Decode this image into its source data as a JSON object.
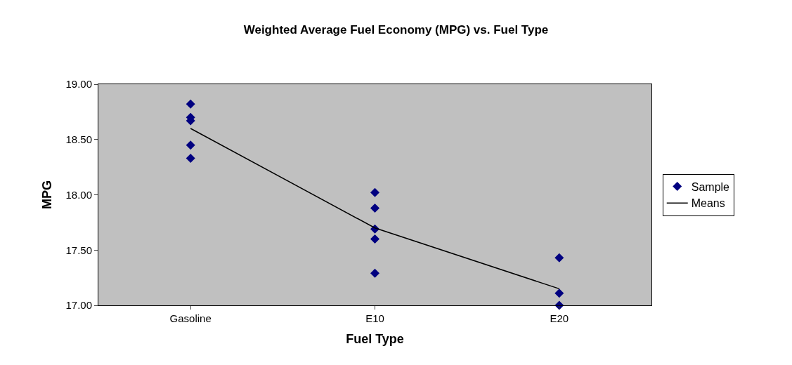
{
  "chart_data": {
    "type": "scatter",
    "title": "Weighted Average Fuel Economy (MPG) vs. Fuel Type",
    "xlabel": "Fuel Type",
    "ylabel": "MPG",
    "categories": [
      "Gasoline",
      "E10",
      "E20"
    ],
    "series": [
      {
        "name": "Sample",
        "color": "#000080",
        "marker": "diamond",
        "x": [
          "Gasoline",
          "Gasoline",
          "Gasoline",
          "Gasoline",
          "Gasoline",
          "E10",
          "E10",
          "E10",
          "E10",
          "E10",
          "E20",
          "E20",
          "E20"
        ],
        "values": [
          18.82,
          18.7,
          18.67,
          18.45,
          18.33,
          18.02,
          17.88,
          17.69,
          17.6,
          17.29,
          17.43,
          17.11,
          17.0
        ]
      },
      {
        "name": "Means",
        "type": "line",
        "color": "#000000",
        "marker": "none",
        "line_style": "solid",
        "x": [
          "Gasoline",
          "E10",
          "E20"
        ],
        "values": [
          18.6,
          17.7,
          17.15
        ]
      }
    ],
    "ylim": [
      17.0,
      19.0
    ],
    "yticks": [
      {
        "value": 17.0,
        "label": "17.00"
      },
      {
        "value": 17.5,
        "label": "17.50"
      },
      {
        "value": 18.0,
        "label": "18.00"
      },
      {
        "value": 18.5,
        "label": "18.50"
      },
      {
        "value": 19.0,
        "label": "19.00"
      }
    ],
    "grid": false,
    "legend": "right"
  }
}
